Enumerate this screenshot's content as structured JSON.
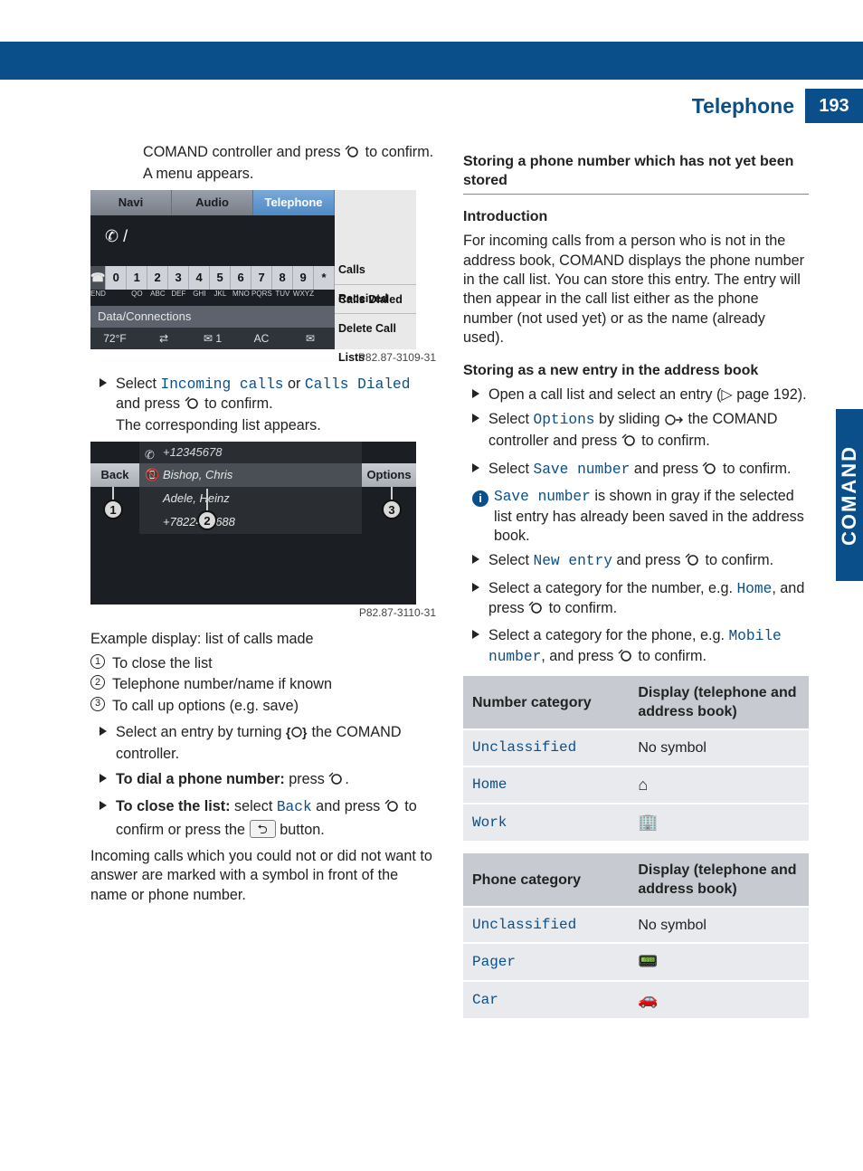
{
  "header": {
    "title": "Telephone",
    "page_no": "193",
    "side_tab": "COMAND"
  },
  "left": {
    "intro_line1": "COMAND controller and press ",
    "intro_line1_tail": " to confirm.",
    "intro_line2": "A menu appears.",
    "shot1": {
      "tabs": [
        "Navi",
        "Audio",
        "Telephone"
      ],
      "menu": [
        "Calls Received",
        "Calls Dialed",
        "Delete Call Lists"
      ],
      "keys": [
        "0",
        "1",
        "2",
        "3",
        "4",
        "5",
        "6",
        "7",
        "8",
        "9",
        "*"
      ],
      "keysub": [
        "",
        "QO",
        "ABC",
        "DEF",
        "GHI",
        "JKL",
        "MNO",
        "PQRS",
        "TUV",
        "WXYZ",
        ""
      ],
      "data_conn": "Data/Connections",
      "status": [
        "72°F",
        "⇄",
        "✉ 1",
        "AC",
        "✉"
      ],
      "phone_glyph": "✆ /",
      "figref": "P82.87-3109-31"
    },
    "step1_a": "Select ",
    "step1_opt1": "Incoming calls",
    "step1_mid": " or ",
    "step1_opt2": "Calls Dialed",
    "step1_b": " and press ",
    "step1_tail": " to confirm.",
    "step1_res": "The corresponding list appears.",
    "shot2": {
      "top_number": "+12345678",
      "rows": [
        "Bishop, Chris",
        "Adele, Heinz",
        "+7822446688"
      ],
      "back": "Back",
      "options": "Options",
      "figref": "P82.87-3110-31"
    },
    "example_caption": "Example display: list of calls made",
    "callouts": [
      "To close the list",
      "Telephone number/name if known",
      "To call up options (e.g. save)"
    ],
    "step2_a": "Select an entry by turning ",
    "step2_tail": " the COMAND controller.",
    "step3_label": "To dial a phone number:",
    "step3_tail": " press ",
    "step4_label": "To close the list:",
    "step4_a": " select ",
    "step4_back": "Back",
    "step4_b": " and press ",
    "step4_c": " to confirm or press the ",
    "step4_btn": "⮌",
    "step4_tail": " button.",
    "para_missed": "Incoming calls which you could not or did not want to answer are marked with a symbol in front of the name or phone number."
  },
  "right": {
    "h_main": "Storing a phone number which has not yet been stored",
    "h_intro": "Introduction",
    "intro_para": "For incoming calls from a person who is not in the address book, COMAND displays the phone number in the call list. You can store this entry. The entry will then appear in the call list either as the phone number (not used yet) or as the name (already used).",
    "h_new": "Storing as a new entry in the address book",
    "s1": "Open a call list and select an entry (▷ page 192).",
    "s2a": "Select ",
    "s2_opt": "Options",
    "s2b": " by sliding ",
    "s2c": " the COMAND controller and press ",
    "s2d": " to confirm.",
    "s3a": "Select ",
    "s3_opt": "Save number",
    "s3b": " and press ",
    "s3c": " to confirm.",
    "info_a": "Save number",
    "info_b": " is shown in gray if the selected list entry has already been saved in the address book.",
    "s4a": "Select ",
    "s4_opt": "New entry",
    "s4b": " and press ",
    "s4c": " to confirm.",
    "s5a": "Select a category for the number, e.g. ",
    "s5_opt": "Home",
    "s5b": ", and press ",
    "s5c": " to confirm.",
    "s6a": "Select a category for the phone, e.g. ",
    "s6_opt": "Mobile number",
    "s6b": ", and press ",
    "s6c": " to confirm.",
    "table1": {
      "col1": "Number category",
      "col2": "Display (telephone and address book)",
      "rows": [
        {
          "cat": "Unclassified",
          "sym": "No symbol",
          "is_text": true
        },
        {
          "cat": "Home",
          "sym": "⌂"
        },
        {
          "cat": "Work",
          "sym": "🏢"
        }
      ]
    },
    "table2": {
      "col1": "Phone category",
      "col2": "Display (telephone and address book)",
      "rows": [
        {
          "cat": "Unclassified",
          "sym": "No symbol",
          "is_text": true
        },
        {
          "cat": "Pager",
          "sym": "📟"
        },
        {
          "cat": "Car",
          "sym": "🚗"
        }
      ]
    }
  },
  "icons": {
    "press_knob_svg": "<svg width='18' height='16' viewBox='0 0 18 16'><circle cx='9' cy='8' r='5' fill='none' stroke='#222' stroke-width='1.6'/><path d='M3 3 L1 5 M3 3 L5 1' stroke='#222' stroke-width='1.4' fill='none'/></svg>",
    "slide_right_svg": "<svg width='22' height='14' viewBox='0 0 22 14'><circle cx='7' cy='7' r='5' fill='none' stroke='#222' stroke-width='1.4'/><path d='M13 7 L20 7 M17 4 L20 7 L17 10' stroke='#222' stroke-width='1.4' fill='none'/></svg>",
    "turn_knob_svg": "<svg width='24' height='16' viewBox='0 0 24 16'><text x='0' y='13' font-size='14' font-weight='bold' fill='#222'>{</text><circle cx='12' cy='8' r='5' fill='none' stroke='#222' stroke-width='1.4'/><text x='18' y='13' font-size='14' font-weight='bold' fill='#222'>}</text></svg>"
  }
}
